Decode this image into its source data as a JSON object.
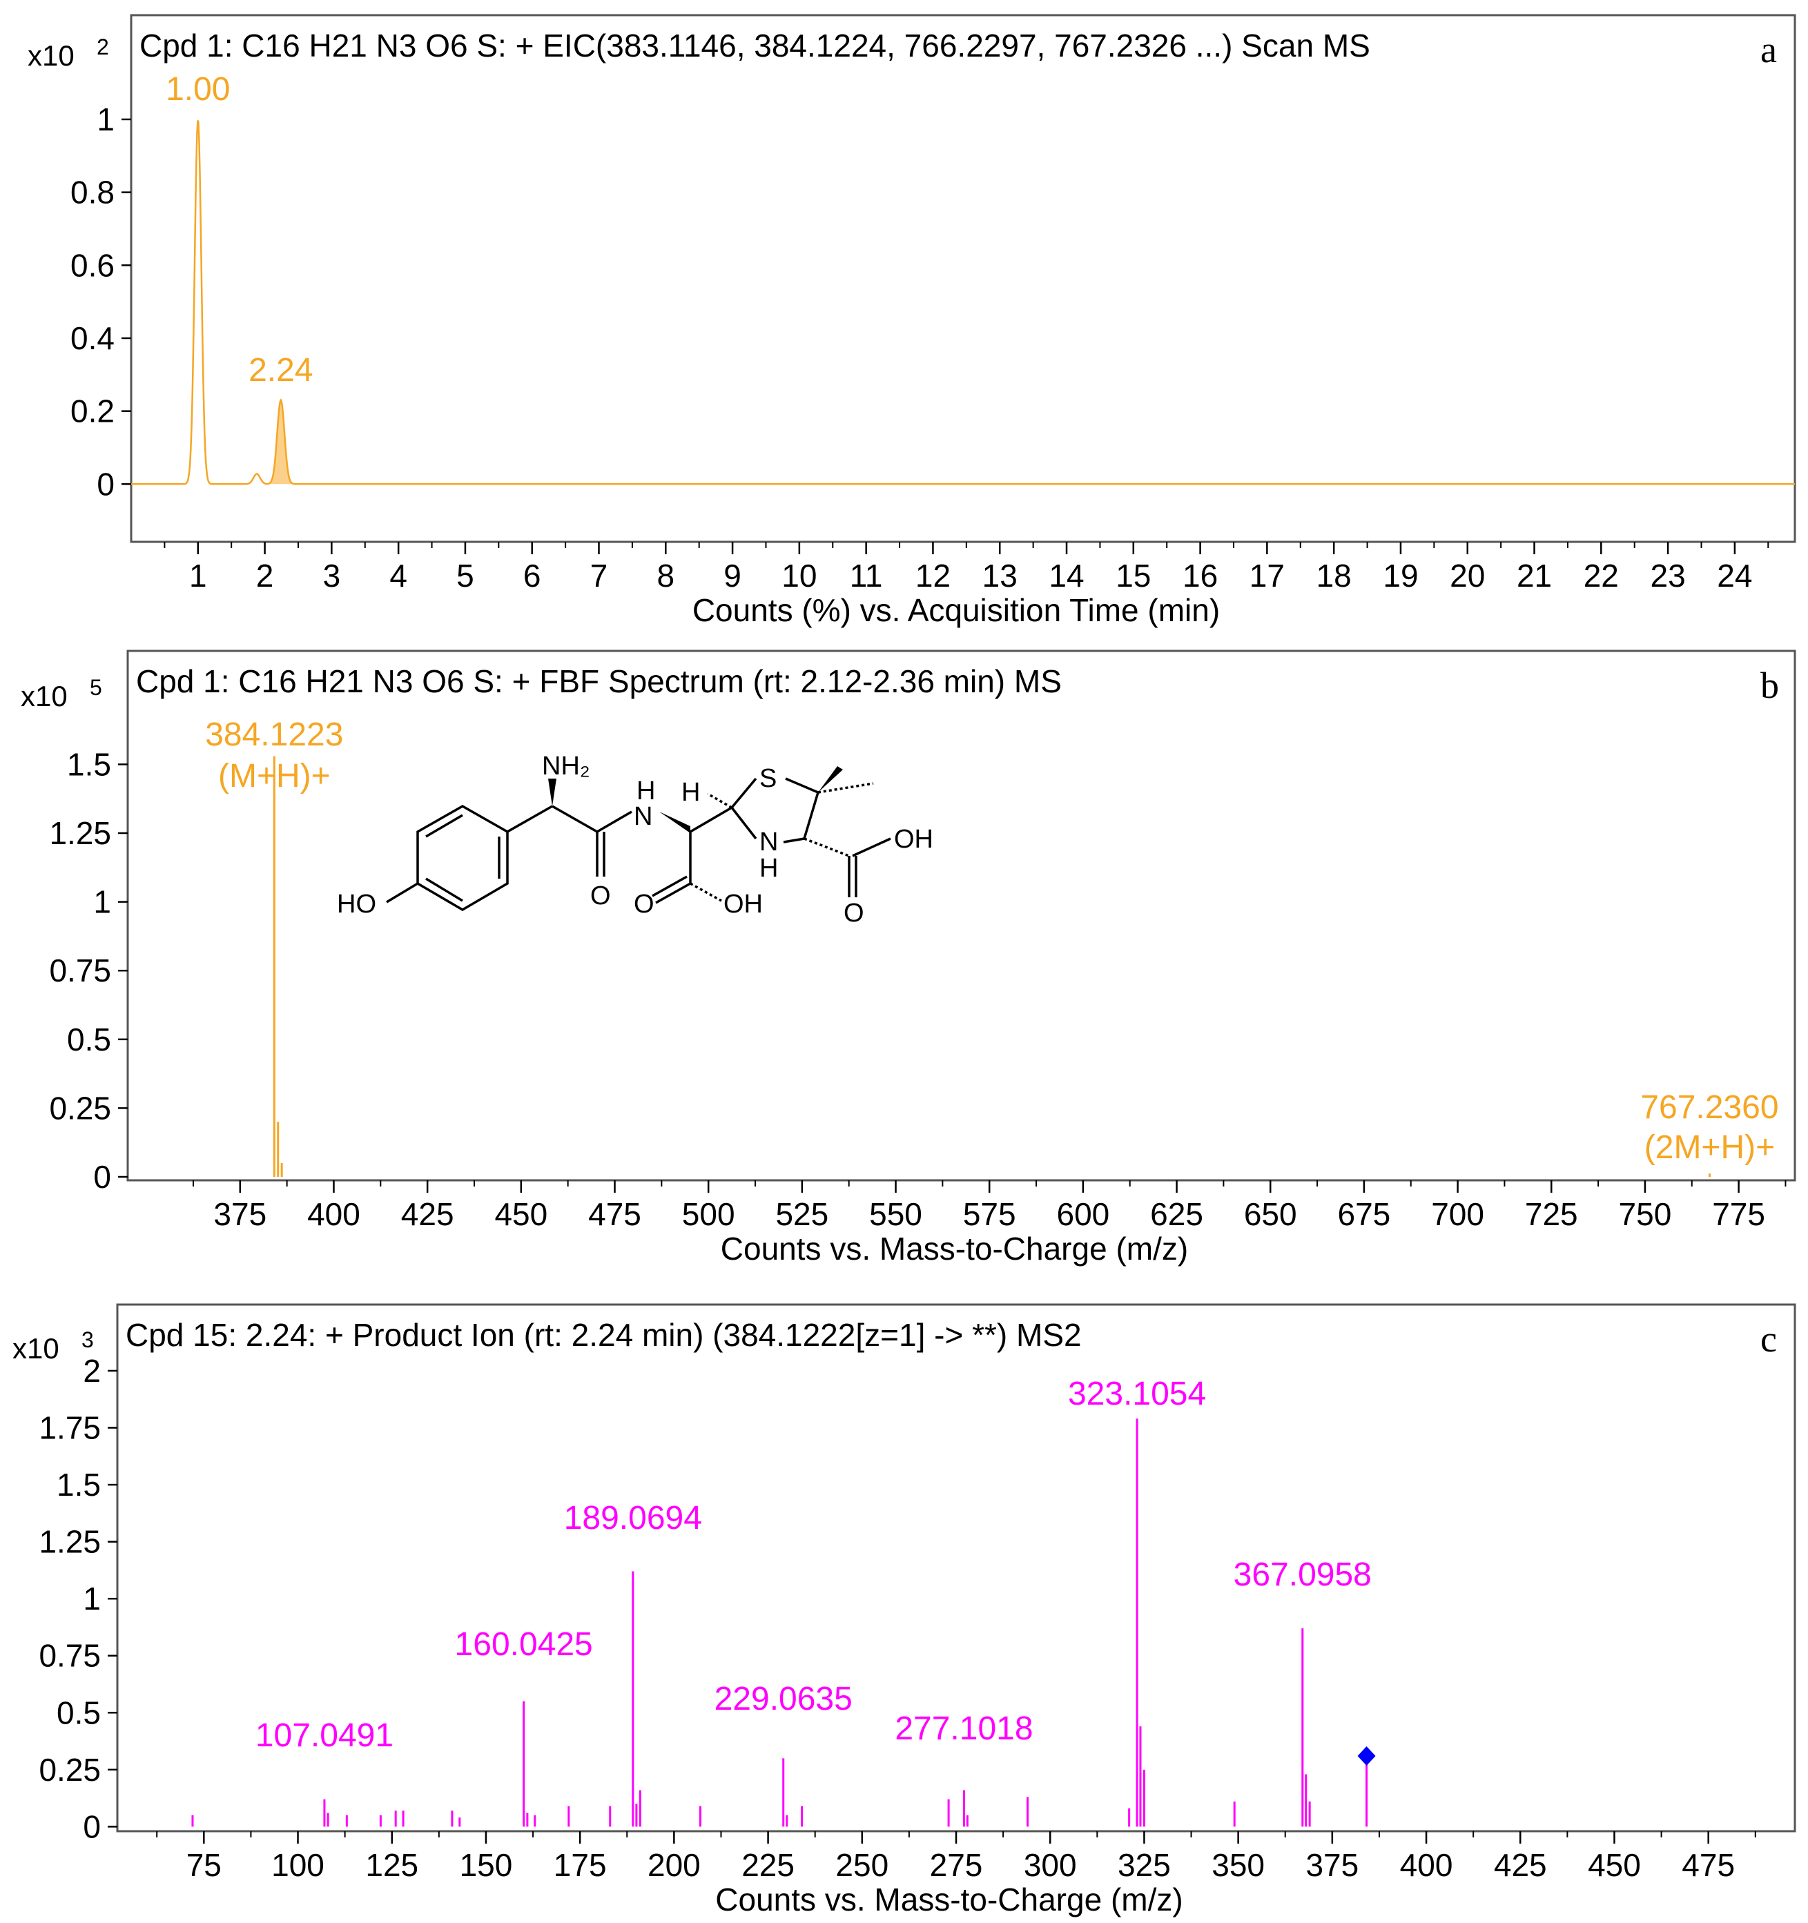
{
  "chart_data": [
    {
      "panel": "a",
      "type": "line",
      "title": "Cpd 1: C16 H21 N3 O6 S: + EIC(383.1146, 384.1224, 766.2297, 767.2326 ...) Scan MS",
      "xlabel": "Counts (%) vs. Acquisition Time (min)",
      "ylabel": "",
      "y_multiplier": {
        "base": "x10",
        "exp": "2"
      },
      "xlim": [
        0,
        24.9
      ],
      "ylim": [
        -0.13,
        1.28
      ],
      "xticks": [
        1,
        2,
        3,
        4,
        5,
        6,
        7,
        8,
        9,
        10,
        11,
        12,
        13,
        14,
        15,
        16,
        17,
        18,
        19,
        20,
        21,
        22,
        23,
        24
      ],
      "yticks": [
        0,
        0.2,
        0.4,
        0.6,
        0.8,
        1
      ],
      "ytick_labels": [
        "0",
        "0.2",
        "0.4",
        "0.6",
        "0.8",
        "1"
      ],
      "color": "#F5A623",
      "peaks": [
        {
          "x": 1.0,
          "y": 1.0,
          "width": 0.05
        },
        {
          "x": 1.88,
          "y": 0.028,
          "width": 0.05
        },
        {
          "x": 2.24,
          "y": 0.23,
          "width": 0.055
        }
      ],
      "annotations": [
        {
          "text": "1.00",
          "x": 1.0,
          "y": 1.0
        },
        {
          "text": "2.24",
          "x": 2.24,
          "y": 0.23
        }
      ],
      "panel_letter": "a"
    },
    {
      "panel": "b",
      "type": "bar",
      "title": "Cpd 1: C16 H21 N3 O6 S: + FBF Spectrum (rt: 2.12-2.36 min) MS",
      "xlabel": "Counts vs. Mass-to-Charge (m/z)",
      "ylabel": "",
      "y_multiplier": {
        "base": "x10",
        "exp": "5"
      },
      "xlim": [
        345,
        790
      ],
      "ylim": [
        0,
        1.87
      ],
      "xticks": [
        375,
        400,
        425,
        450,
        475,
        500,
        525,
        550,
        575,
        600,
        625,
        650,
        675,
        700,
        725,
        750,
        775
      ],
      "yticks": [
        0,
        0.25,
        0.5,
        0.75,
        1,
        1.25,
        1.5
      ],
      "ytick_labels": [
        "0",
        "0.25",
        "0.5",
        "0.75",
        "1",
        "1.25",
        "1.5"
      ],
      "color": "#F5A623",
      "sticks": [
        {
          "x": 384.1223,
          "y": 1.53
        },
        {
          "x": 385.12,
          "y": 0.2
        },
        {
          "x": 386.12,
          "y": 0.05
        },
        {
          "x": 767.236,
          "y": 0.012
        }
      ],
      "annotations": [
        {
          "lines": [
            "384.1223",
            "(M+H)+"
          ],
          "x": 384.1223
        },
        {
          "lines": [
            "767.2360",
            "(2M+H)+"
          ],
          "x": 767.236
        }
      ],
      "structure_labels": {
        "nh2": "NH₂",
        "nh_amide": "N",
        "h_amide": "H",
        "h_stereo": "H",
        "s": "S",
        "nh_ring": "N",
        "h_ring": "H",
        "ho": "HO",
        "oh_acid1": "OH",
        "oh_acid2": "OH",
        "o1": "O",
        "o2": "O",
        "o3": "O"
      },
      "panel_letter": "b"
    },
    {
      "panel": "c",
      "type": "bar",
      "title": "Cpd 15: 2.24: + Product Ion (rt: 2.24 min) (384.1222[z=1] -> **) MS2",
      "xlabel": "Counts vs. Mass-to-Charge (m/z)",
      "ylabel": "",
      "y_multiplier": {
        "base": "x10",
        "exp": "3"
      },
      "xlim": [
        52,
        498
      ],
      "ylim": [
        -0.02,
        2.23
      ],
      "xticks": [
        75,
        100,
        125,
        150,
        175,
        200,
        225,
        250,
        275,
        300,
        325,
        350,
        375,
        400,
        425,
        450,
        475
      ],
      "yticks": [
        0,
        0.25,
        0.5,
        0.75,
        1,
        1.25,
        1.5,
        1.75,
        2
      ],
      "ytick_labels": [
        "0",
        "0.25",
        "0.5",
        "0.75",
        "1",
        "1.25",
        "1.5",
        "1.75",
        "2"
      ],
      "color": "#FF00FF",
      "sticks": [
        {
          "x": 72,
          "y": 0.05
        },
        {
          "x": 107.0491,
          "y": 0.12
        },
        {
          "x": 108,
          "y": 0.06
        },
        {
          "x": 113,
          "y": 0.05
        },
        {
          "x": 122,
          "y": 0.05
        },
        {
          "x": 126,
          "y": 0.07
        },
        {
          "x": 128,
          "y": 0.07
        },
        {
          "x": 141,
          "y": 0.07
        },
        {
          "x": 143,
          "y": 0.04
        },
        {
          "x": 160.0425,
          "y": 0.55
        },
        {
          "x": 161,
          "y": 0.06
        },
        {
          "x": 163,
          "y": 0.05
        },
        {
          "x": 172,
          "y": 0.09
        },
        {
          "x": 183,
          "y": 0.09
        },
        {
          "x": 189.0694,
          "y": 1.12
        },
        {
          "x": 190,
          "y": 0.1
        },
        {
          "x": 191,
          "y": 0.16
        },
        {
          "x": 207,
          "y": 0.09
        },
        {
          "x": 229.0635,
          "y": 0.3
        },
        {
          "x": 230,
          "y": 0.05
        },
        {
          "x": 234,
          "y": 0.09
        },
        {
          "x": 273,
          "y": 0.12
        },
        {
          "x": 277.1018,
          "y": 0.16
        },
        {
          "x": 278,
          "y": 0.05
        },
        {
          "x": 294,
          "y": 0.13
        },
        {
          "x": 321,
          "y": 0.08
        },
        {
          "x": 323.1054,
          "y": 1.79
        },
        {
          "x": 324,
          "y": 0.44
        },
        {
          "x": 325,
          "y": 0.25
        },
        {
          "x": 349,
          "y": 0.11
        },
        {
          "x": 367.0958,
          "y": 0.87
        },
        {
          "x": 368,
          "y": 0.23
        },
        {
          "x": 369,
          "y": 0.11
        },
        {
          "x": 384.1222,
          "y": 0.31
        }
      ],
      "precursor": {
        "x": 384.1222,
        "y": 0.31,
        "marker_color": "#0000FF"
      },
      "annotations": [
        {
          "text": "107.0491",
          "x": 107.0491
        },
        {
          "text": "160.0425",
          "x": 160.0425
        },
        {
          "text": "189.0694",
          "x": 189.0694
        },
        {
          "text": "229.0635",
          "x": 229.0635
        },
        {
          "text": "277.1018",
          "x": 277.1018
        },
        {
          "text": "323.1054",
          "x": 323.1054
        },
        {
          "text": "367.0958",
          "x": 367.0958
        }
      ],
      "panel_letter": "c"
    }
  ]
}
